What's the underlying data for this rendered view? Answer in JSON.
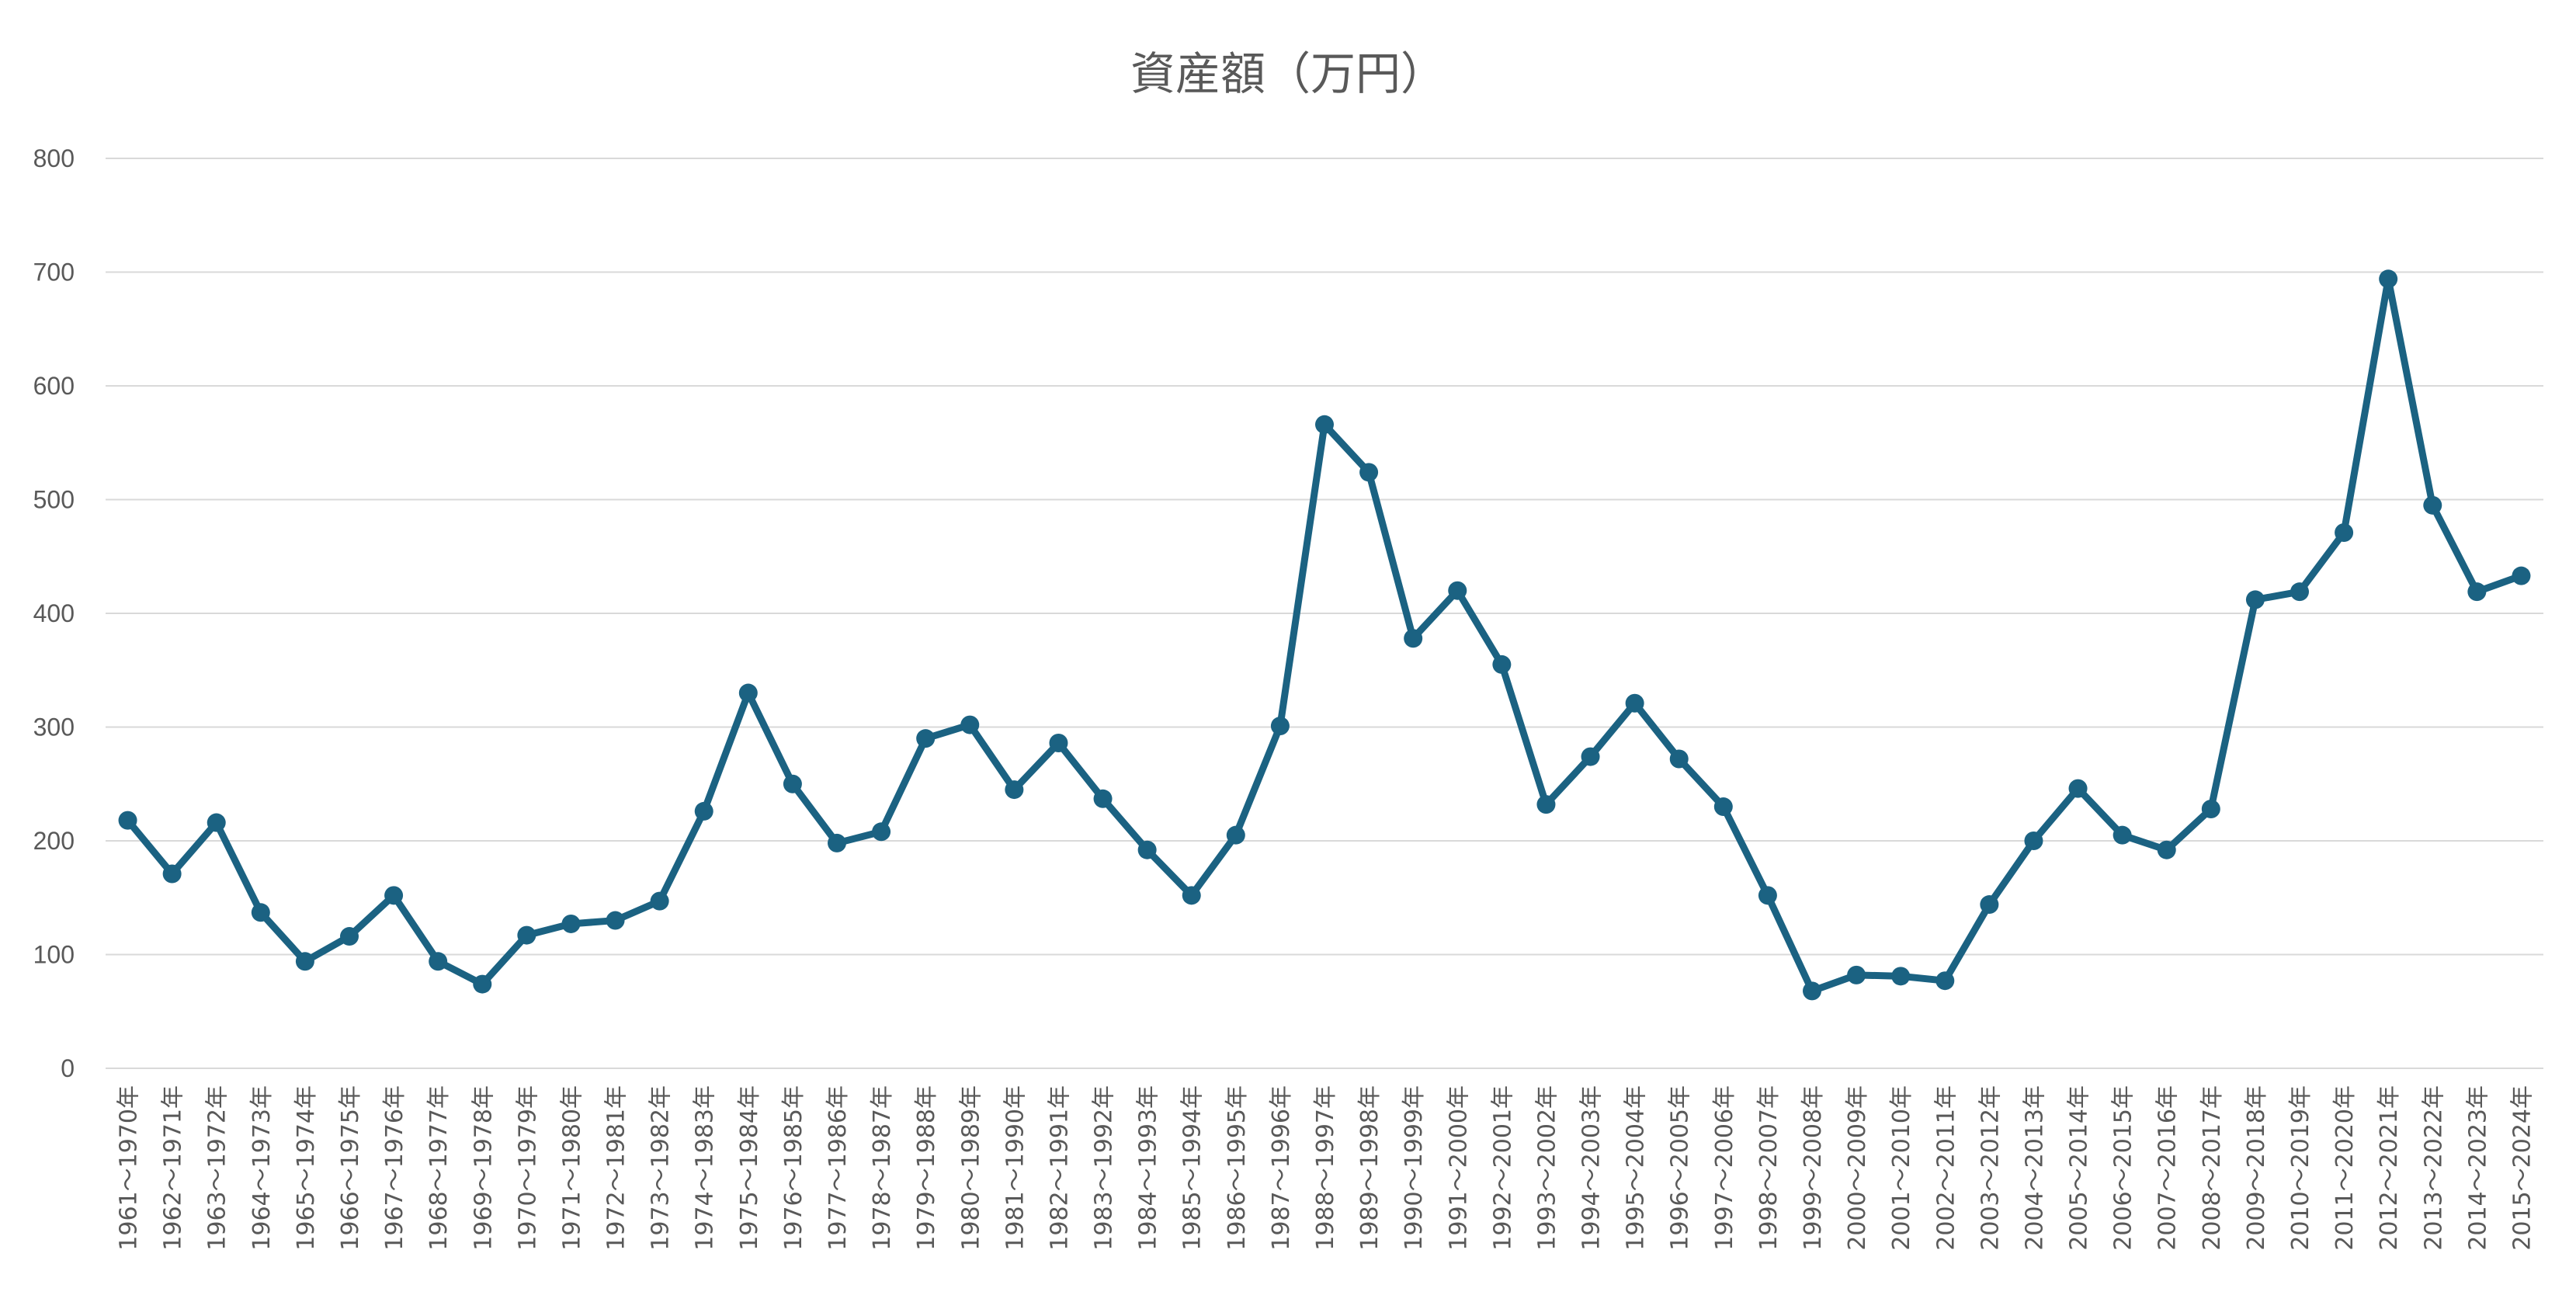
{
  "chart_data": {
    "type": "line",
    "title": "資産額（万円）",
    "xlabel": "",
    "ylabel": "",
    "ylim": [
      0,
      800
    ],
    "yticks": [
      "0",
      "100",
      "200",
      "300",
      "400",
      "500",
      "600",
      "700",
      "800"
    ],
    "grid": true,
    "legend": "none",
    "line_color": "#1b6282",
    "grid_color": "#d9d9d9",
    "categories": [
      "1961～1970年",
      "1962～1971年",
      "1963～1972年",
      "1964～1973年",
      "1965～1974年",
      "1966～1975年",
      "1967～1976年",
      "1968～1977年",
      "1969～1978年",
      "1970～1979年",
      "1971～1980年",
      "1972～1981年",
      "1973～1982年",
      "1974～1983年",
      "1975～1984年",
      "1976～1985年",
      "1977～1986年",
      "1978～1987年",
      "1979～1988年",
      "1980～1989年",
      "1981～1990年",
      "1982～1991年",
      "1983～1992年",
      "1984～1993年",
      "1985～1994年",
      "1986～1995年",
      "1987～1996年",
      "1988～1997年",
      "1989～1998年",
      "1990～1999年",
      "1991～2000年",
      "1992～2001年",
      "1993～2002年",
      "1994～2003年",
      "1995～2004年",
      "1996～2005年",
      "1997～2006年",
      "1998～2007年",
      "1999～2008年",
      "2000～2009年",
      "2001～2010年",
      "2002～2011年",
      "2003～2012年",
      "2004～2013年",
      "2005～2014年",
      "2006～2015年",
      "2007～2016年",
      "2008～2017年",
      "2009～2018年",
      "2010～2019年",
      "2011～2020年",
      "2012～2021年",
      "2013～2022年",
      "2014～2023年",
      "2015～2024年"
    ],
    "series": [
      {
        "values": [
          218,
          171,
          216,
          137,
          94,
          116,
          152,
          94,
          74,
          117,
          127,
          130,
          147,
          226,
          330,
          250,
          198,
          208,
          290,
          302,
          245,
          286,
          237,
          192,
          152,
          205,
          301,
          566,
          524,
          378,
          420,
          355,
          232,
          274,
          321,
          272,
          230,
          152,
          68,
          82,
          81,
          77,
          144,
          200,
          246,
          205,
          192,
          228,
          412,
          419,
          471,
          694,
          495,
          419,
          433
        ]
      }
    ]
  }
}
